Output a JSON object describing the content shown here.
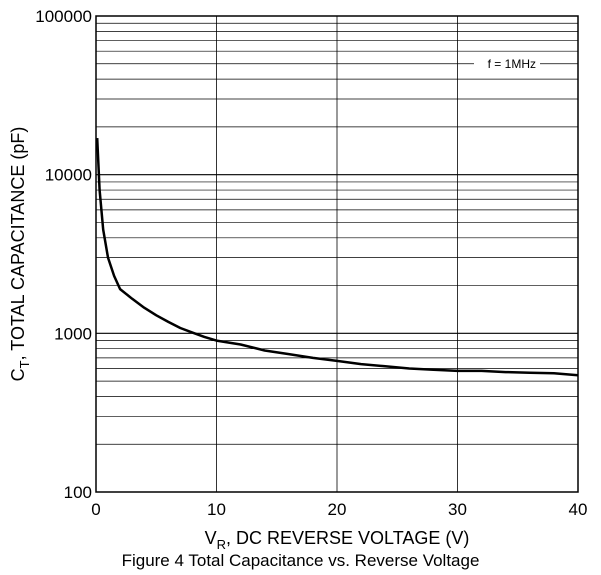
{
  "chart_data": {
    "type": "line",
    "title": "Figure 4 Total Capacitance vs. Reverse Voltage",
    "xlabel": {
      "main": "V",
      "sub": "R",
      "rest": ", DC REVERSE VOLTAGE (V)"
    },
    "ylabel": {
      "main": "C",
      "sub": "T",
      "rest": ", TOTAL CAPACITANCE (pF)"
    },
    "xlim": [
      0,
      40
    ],
    "ylim": [
      100,
      100000
    ],
    "yscale": "log",
    "grid": true,
    "x_ticks": [
      "0",
      "10",
      "20",
      "30",
      "40"
    ],
    "y_ticks": [
      "100",
      "1000",
      "10000",
      "100000"
    ],
    "annotation": "f = 1MHz",
    "series": [
      {
        "x": [
          0.1,
          0.3,
          0.6,
          1,
          1.5,
          2,
          3,
          4,
          5,
          6,
          7,
          8,
          9,
          10,
          12,
          14,
          16,
          18,
          20,
          22,
          24,
          26,
          28,
          30,
          32,
          34,
          36,
          38,
          40
        ],
        "y": [
          17000,
          8000,
          4500,
          3000,
          2300,
          1900,
          1650,
          1450,
          1300,
          1180,
          1080,
          1010,
          950,
          900,
          850,
          780,
          740,
          700,
          670,
          640,
          620,
          600,
          590,
          580,
          580,
          570,
          565,
          560,
          545
        ]
      }
    ]
  }
}
